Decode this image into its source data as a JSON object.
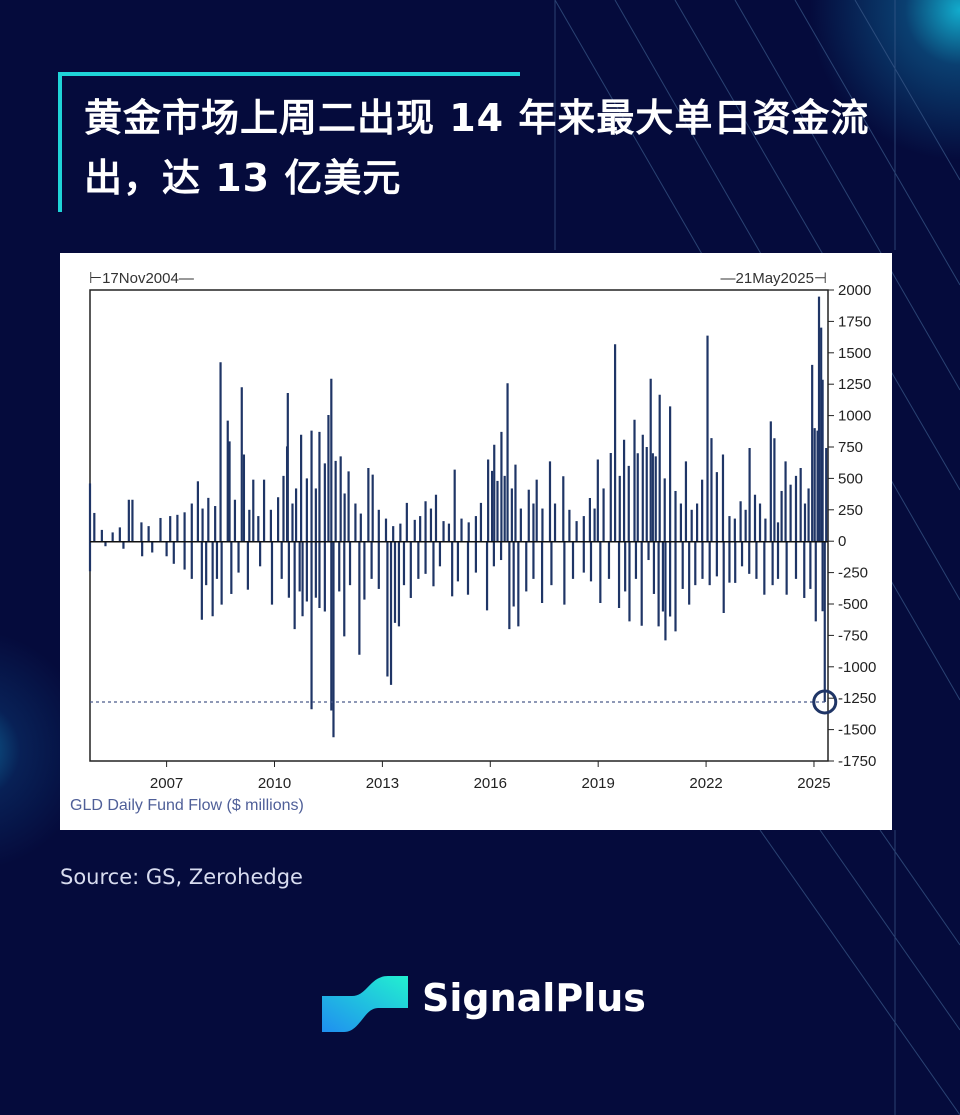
{
  "title": "黄金市场上周二出现 14 年来最大单日资金流出，达 13 亿美元",
  "source": "Source: GS, Zerohedge",
  "brand": {
    "name": "SignalPlus",
    "colors": {
      "background": "#050b3c",
      "accent": "#1fd4d8"
    }
  },
  "chart_data": {
    "type": "bar",
    "title": "",
    "xlabel": "",
    "ylabel": "",
    "series_label": "GLD Daily Fund Flow ($ millions)",
    "start_label": "17Nov2004",
    "end_label": "21May2025",
    "xlim": [
      2004.87,
      2025.39
    ],
    "ylim": [
      -1750,
      2000
    ],
    "x_ticks": [
      "2007",
      "2010",
      "2013",
      "2016",
      "2019",
      "2022",
      "2025"
    ],
    "y_ticks": [
      "2000",
      "1750",
      "1500",
      "1250",
      "1000",
      "750",
      "500",
      "250",
      "0",
      "-250",
      "-500",
      "-750",
      "-1000",
      "-1250",
      "-1500",
      "-1750"
    ],
    "bar_color": "#1f3566",
    "reference_line": -1280,
    "highlight": {
      "x": 2025.3,
      "y": -1280
    },
    "grid": false,
    "legend": "none",
    "points": [
      [
        2004.87,
        460
      ],
      [
        2004.99,
        225
      ],
      [
        2005.2,
        90
      ],
      [
        2005.5,
        70
      ],
      [
        2005.7,
        110
      ],
      [
        2005.95,
        330
      ],
      [
        2006.05,
        330
      ],
      [
        2006.3,
        150
      ],
      [
        2006.5,
        120
      ],
      [
        2006.83,
        185
      ],
      [
        2007.1,
        200
      ],
      [
        2007.3,
        210
      ],
      [
        2007.5,
        230
      ],
      [
        2007.7,
        300
      ],
      [
        2007.87,
        477
      ],
      [
        2008.0,
        260
      ],
      [
        2008.16,
        345
      ],
      [
        2008.35,
        280
      ],
      [
        2008.5,
        1425
      ],
      [
        2008.7,
        960
      ],
      [
        2008.75,
        795
      ],
      [
        2008.9,
        330
      ],
      [
        2009.09,
        1226
      ],
      [
        2009.15,
        690
      ],
      [
        2009.3,
        250
      ],
      [
        2009.41,
        490
      ],
      [
        2009.55,
        200
      ],
      [
        2009.71,
        490
      ],
      [
        2009.9,
        250
      ],
      [
        2010.1,
        350
      ],
      [
        2010.25,
        520
      ],
      [
        2010.35,
        755
      ],
      [
        2010.37,
        1180
      ],
      [
        2010.5,
        300
      ],
      [
        2010.6,
        420
      ],
      [
        2010.74,
        848
      ],
      [
        2010.9,
        500
      ],
      [
        2011.03,
        880
      ],
      [
        2011.15,
        420
      ],
      [
        2011.25,
        870
      ],
      [
        2011.4,
        620
      ],
      [
        2011.5,
        1005
      ],
      [
        2011.58,
        1293
      ],
      [
        2011.7,
        640
      ],
      [
        2011.84,
        675
      ],
      [
        2011.95,
        380
      ],
      [
        2012.06,
        556
      ],
      [
        2012.25,
        300
      ],
      [
        2012.4,
        220
      ],
      [
        2012.61,
        583
      ],
      [
        2012.73,
        530
      ],
      [
        2012.9,
        250
      ],
      [
        2013.1,
        180
      ],
      [
        2013.3,
        120
      ],
      [
        2013.5,
        140
      ],
      [
        2013.68,
        305
      ],
      [
        2013.9,
        170
      ],
      [
        2014.05,
        200
      ],
      [
        2014.2,
        318
      ],
      [
        2014.35,
        260
      ],
      [
        2014.49,
        370
      ],
      [
        2014.7,
        160
      ],
      [
        2014.85,
        140
      ],
      [
        2015.01,
        570
      ],
      [
        2015.2,
        180
      ],
      [
        2015.4,
        150
      ],
      [
        2015.6,
        200
      ],
      [
        2015.74,
        305
      ],
      [
        2015.94,
        650
      ],
      [
        2016.05,
        560
      ],
      [
        2016.11,
        768
      ],
      [
        2016.2,
        480
      ],
      [
        2016.31,
        870
      ],
      [
        2016.4,
        520
      ],
      [
        2016.48,
        1258
      ],
      [
        2016.6,
        420
      ],
      [
        2016.7,
        610
      ],
      [
        2016.85,
        260
      ],
      [
        2017.07,
        410
      ],
      [
        2017.2,
        300
      ],
      [
        2017.29,
        490
      ],
      [
        2017.45,
        260
      ],
      [
        2017.66,
        636
      ],
      [
        2017.8,
        300
      ],
      [
        2018.03,
        517
      ],
      [
        2018.2,
        250
      ],
      [
        2018.4,
        160
      ],
      [
        2018.6,
        200
      ],
      [
        2018.77,
        344
      ],
      [
        2018.9,
        260
      ],
      [
        2018.99,
        650
      ],
      [
        2019.15,
        420
      ],
      [
        2019.35,
        702
      ],
      [
        2019.47,
        1568
      ],
      [
        2019.6,
        520
      ],
      [
        2019.72,
        808
      ],
      [
        2019.85,
        600
      ],
      [
        2020.01,
        967
      ],
      [
        2020.1,
        700
      ],
      [
        2020.24,
        848
      ],
      [
        2020.35,
        750
      ],
      [
        2020.46,
        1293
      ],
      [
        2020.52,
        700
      ],
      [
        2020.6,
        675
      ],
      [
        2020.71,
        1166
      ],
      [
        2020.85,
        500
      ],
      [
        2021.0,
        1073
      ],
      [
        2021.15,
        400
      ],
      [
        2021.3,
        300
      ],
      [
        2021.44,
        636
      ],
      [
        2021.6,
        250
      ],
      [
        2021.75,
        300
      ],
      [
        2021.89,
        490
      ],
      [
        2022.04,
        1637
      ],
      [
        2022.15,
        821
      ],
      [
        2022.3,
        550
      ],
      [
        2022.47,
        690
      ],
      [
        2022.65,
        200
      ],
      [
        2022.8,
        180
      ],
      [
        2022.96,
        318
      ],
      [
        2023.1,
        250
      ],
      [
        2023.21,
        742
      ],
      [
        2023.36,
        370
      ],
      [
        2023.5,
        300
      ],
      [
        2023.65,
        180
      ],
      [
        2023.8,
        954
      ],
      [
        2023.9,
        820
      ],
      [
        2024.0,
        150
      ],
      [
        2024.1,
        400
      ],
      [
        2024.21,
        636
      ],
      [
        2024.35,
        450
      ],
      [
        2024.5,
        520
      ],
      [
        2024.63,
        583
      ],
      [
        2024.75,
        300
      ],
      [
        2024.85,
        420
      ],
      [
        2024.95,
        1404
      ],
      [
        2025.02,
        900
      ],
      [
        2025.1,
        880
      ],
      [
        2025.14,
        1947
      ],
      [
        2025.2,
        1700
      ],
      [
        2025.24,
        1285
      ],
      [
        2025.34,
        742
      ],
      [
        2004.87,
        -239
      ],
      [
        2005.3,
        -40
      ],
      [
        2005.8,
        -60
      ],
      [
        2006.32,
        -120
      ],
      [
        2006.6,
        -90
      ],
      [
        2007.0,
        -120
      ],
      [
        2007.2,
        -180
      ],
      [
        2007.5,
        -226
      ],
      [
        2007.7,
        -300
      ],
      [
        2007.98,
        -625
      ],
      [
        2008.1,
        -350
      ],
      [
        2008.28,
        -598
      ],
      [
        2008.4,
        -300
      ],
      [
        2008.53,
        -505
      ],
      [
        2008.8,
        -420
      ],
      [
        2009.0,
        -250
      ],
      [
        2009.26,
        -386
      ],
      [
        2009.6,
        -200
      ],
      [
        2009.93,
        -505
      ],
      [
        2010.2,
        -300
      ],
      [
        2010.4,
        -450
      ],
      [
        2010.56,
        -700
      ],
      [
        2010.7,
        -400
      ],
      [
        2010.78,
        -598
      ],
      [
        2010.9,
        -480
      ],
      [
        2011.03,
        -1338
      ],
      [
        2011.15,
        -450
      ],
      [
        2011.25,
        -532
      ],
      [
        2011.4,
        -560
      ],
      [
        2011.58,
        -1348
      ],
      [
        2011.64,
        -1561
      ],
      [
        2011.8,
        -400
      ],
      [
        2011.94,
        -758
      ],
      [
        2012.1,
        -350
      ],
      [
        2012.36,
        -904
      ],
      [
        2012.5,
        -465
      ],
      [
        2012.7,
        -300
      ],
      [
        2012.9,
        -380
      ],
      [
        2013.14,
        -1077
      ],
      [
        2013.24,
        -1144
      ],
      [
        2013.35,
        -650
      ],
      [
        2013.46,
        -678
      ],
      [
        2013.6,
        -350
      ],
      [
        2013.79,
        -452
      ],
      [
        2014.0,
        -300
      ],
      [
        2014.2,
        -260
      ],
      [
        2014.42,
        -359
      ],
      [
        2014.6,
        -200
      ],
      [
        2014.94,
        -439
      ],
      [
        2015.1,
        -320
      ],
      [
        2015.38,
        -426
      ],
      [
        2015.6,
        -250
      ],
      [
        2015.91,
        -551
      ],
      [
        2016.1,
        -200
      ],
      [
        2016.3,
        -150
      ],
      [
        2016.53,
        -700
      ],
      [
        2016.65,
        -520
      ],
      [
        2016.78,
        -678
      ],
      [
        2017.0,
        -400
      ],
      [
        2017.2,
        -300
      ],
      [
        2017.44,
        -492
      ],
      [
        2017.7,
        -350
      ],
      [
        2018.06,
        -505
      ],
      [
        2018.3,
        -300
      ],
      [
        2018.6,
        -250
      ],
      [
        2018.8,
        -320
      ],
      [
        2019.06,
        -492
      ],
      [
        2019.3,
        -300
      ],
      [
        2019.58,
        -532
      ],
      [
        2019.75,
        -400
      ],
      [
        2019.87,
        -638
      ],
      [
        2020.05,
        -300
      ],
      [
        2020.21,
        -673
      ],
      [
        2020.4,
        -150
      ],
      [
        2020.55,
        -420
      ],
      [
        2020.68,
        -678
      ],
      [
        2020.8,
        -560
      ],
      [
        2020.87,
        -790
      ],
      [
        2021.0,
        -600
      ],
      [
        2021.15,
        -718
      ],
      [
        2021.35,
        -380
      ],
      [
        2021.53,
        -505
      ],
      [
        2021.7,
        -350
      ],
      [
        2021.9,
        -300
      ],
      [
        2022.1,
        -350
      ],
      [
        2022.3,
        -280
      ],
      [
        2022.49,
        -572
      ],
      [
        2022.65,
        -330
      ],
      [
        2022.81,
        -332
      ],
      [
        2023.0,
        -200
      ],
      [
        2023.2,
        -260
      ],
      [
        2023.4,
        -300
      ],
      [
        2023.62,
        -426
      ],
      [
        2023.85,
        -350
      ],
      [
        2024.0,
        -300
      ],
      [
        2024.24,
        -426
      ],
      [
        2024.5,
        -300
      ],
      [
        2024.73,
        -452
      ],
      [
        2024.9,
        -380
      ],
      [
        2025.05,
        -638
      ],
      [
        2025.24,
        -558
      ],
      [
        2025.3,
        -1280
      ]
    ]
  }
}
